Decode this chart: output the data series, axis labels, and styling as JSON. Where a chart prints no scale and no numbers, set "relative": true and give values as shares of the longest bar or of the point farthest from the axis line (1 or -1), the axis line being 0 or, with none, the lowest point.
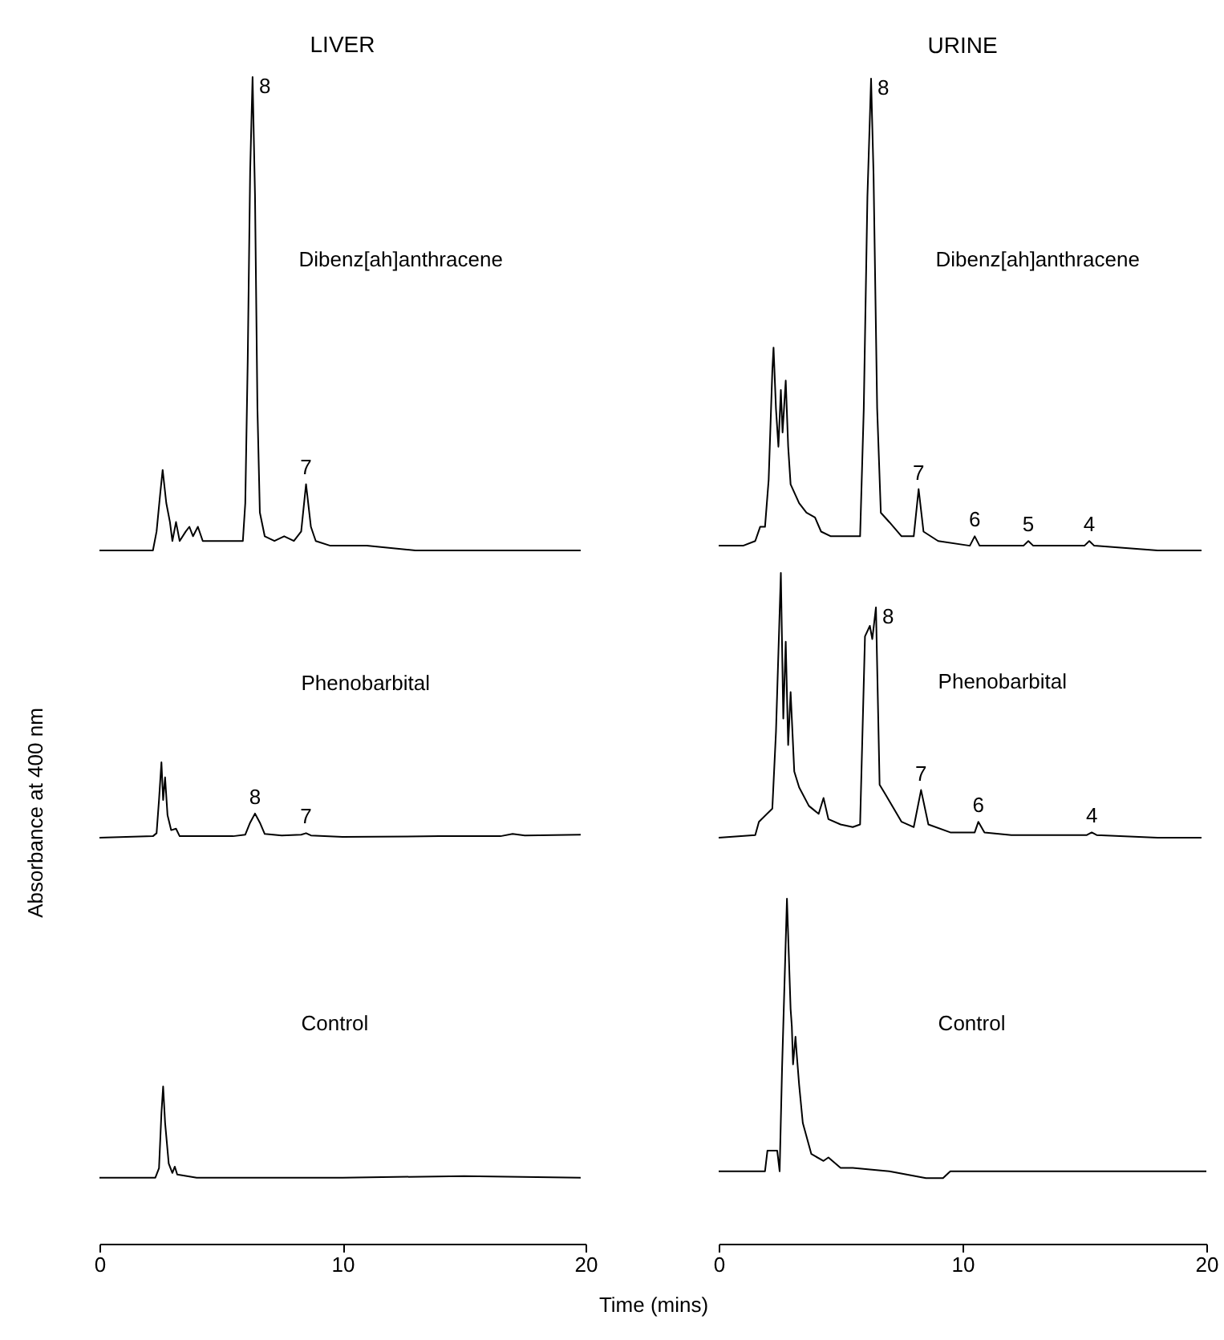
{
  "chart_data": [
    {
      "type": "line",
      "title": "LIVER",
      "relative": true,
      "xlim": [
        0,
        20
      ],
      "xticks": [
        0,
        10,
        20
      ],
      "tick_labels": false,
      "annotations": [
        "Dibenz[ah]anthracene",
        {
          "text": "8",
          "x": 6.3,
          "y": 1
        },
        {
          "text": "7",
          "x": 8.5,
          "y": 0.14
        }
      ],
      "x": [
        0,
        2.2,
        2.35,
        2.5,
        2.6,
        2.75,
        2.9,
        3.0,
        3.15,
        3.3,
        3.55,
        3.7,
        3.85,
        4.05,
        4.25,
        4.6,
        5.9,
        6.0,
        6.1,
        6.2,
        6.3,
        6.4,
        6.5,
        6.6,
        6.8,
        7.2,
        7.6,
        8.0,
        8.3,
        8.5,
        8.7,
        8.9,
        9.5,
        11,
        13,
        16,
        19.8
      ],
      "series": [
        {
          "color": "#000000",
          "values": [
            0,
            0,
            0.04,
            0.12,
            0.17,
            0.1,
            0.06,
            0.02,
            0.06,
            0.02,
            0.04,
            0.05,
            0.03,
            0.05,
            0.02,
            0.02,
            0.02,
            0.1,
            0.4,
            0.8,
            1,
            0.75,
            0.3,
            0.08,
            0.03,
            0.02,
            0.03,
            0.02,
            0.04,
            0.14,
            0.05,
            0.02,
            0.01,
            0.01,
            0,
            0,
            0
          ]
        }
      ]
    },
    {
      "type": "line",
      "title": "URINE",
      "relative": true,
      "xlim": [
        0,
        20
      ],
      "xticks": [
        0,
        10,
        20
      ],
      "tick_labels": false,
      "annotations": [
        "Dibenz[ah]anthracene",
        {
          "text": "8",
          "x": 6.25,
          "y": 1
        },
        {
          "text": "7",
          "x": 8.2,
          "y": 0.13
        },
        {
          "text": "6",
          "x": 10.5,
          "y": 0.03
        },
        {
          "text": "5",
          "x": 12.7,
          "y": 0.02
        },
        {
          "text": "4",
          "x": 15.2,
          "y": 0.02
        }
      ],
      "x": [
        0,
        1.0,
        1.5,
        1.7,
        1.9,
        2.05,
        2.2,
        2.25,
        2.35,
        2.45,
        2.55,
        2.62,
        2.75,
        2.85,
        2.95,
        3.3,
        3.6,
        3.95,
        4.2,
        4.6,
        5.8,
        5.95,
        6.1,
        6.25,
        6.35,
        6.5,
        6.65,
        7.0,
        7.5,
        8.0,
        8.2,
        8.4,
        9,
        10.3,
        10.5,
        10.7,
        12.5,
        12.7,
        12.9,
        15,
        15.2,
        15.4,
        18,
        19.8
      ],
      "series": [
        {
          "color": "#000000",
          "values": [
            0.01,
            0.01,
            0.02,
            0.05,
            0.05,
            0.15,
            0.38,
            0.43,
            0.3,
            0.22,
            0.34,
            0.25,
            0.36,
            0.22,
            0.14,
            0.1,
            0.08,
            0.07,
            0.04,
            0.03,
            0.03,
            0.3,
            0.75,
            1,
            0.8,
            0.3,
            0.08,
            0.06,
            0.03,
            0.03,
            0.13,
            0.04,
            0.02,
            0.01,
            0.03,
            0.01,
            0.01,
            0.02,
            0.01,
            0.01,
            0.02,
            0.01,
            0,
            0
          ]
        }
      ]
    },
    {
      "type": "line",
      "relative": true,
      "xlim": [
        0,
        20
      ],
      "xticks": [
        0,
        10,
        20
      ],
      "tick_labels": false,
      "ylabel": "Absorbance at 400 nm",
      "annotations": [
        "Phenobarbital",
        {
          "text": "8",
          "x": 6.4,
          "y": 0.32
        },
        {
          "text": "7",
          "x": 8.5,
          "y": 0.06
        }
      ],
      "x": [
        0,
        2.2,
        2.35,
        2.45,
        2.55,
        2.62,
        2.7,
        2.8,
        2.95,
        3.15,
        3.3,
        4,
        5.5,
        6.0,
        6.2,
        6.4,
        6.6,
        6.8,
        7.5,
        8.3,
        8.5,
        8.7,
        10,
        14,
        16.5,
        17,
        17.5,
        19.8
      ],
      "series": [
        {
          "color": "#000000",
          "values": [
            0,
            0.02,
            0.06,
            0.5,
            1,
            0.5,
            0.8,
            0.3,
            0.1,
            0.12,
            0.02,
            0.02,
            0.02,
            0.04,
            0.2,
            0.32,
            0.2,
            0.05,
            0.03,
            0.04,
            0.06,
            0.03,
            0.01,
            0.02,
            0.02,
            0.05,
            0.03,
            0.04
          ]
        }
      ]
    },
    {
      "type": "line",
      "relative": true,
      "xlim": [
        0,
        20
      ],
      "xticks": [
        0,
        10,
        20
      ],
      "tick_labels": false,
      "annotations": [
        "Phenobarbital",
        {
          "text": "8",
          "x": 6.45,
          "y": 0.87
        },
        {
          "text": "7",
          "x": 8.3,
          "y": 0.18
        },
        {
          "text": "6",
          "x": 10.65,
          "y": 0.06
        },
        {
          "text": "4",
          "x": 15.3,
          "y": 0.02
        }
      ],
      "x": [
        0,
        1.5,
        1.65,
        2.2,
        2.35,
        2.45,
        2.55,
        2.65,
        2.75,
        2.85,
        2.95,
        3.1,
        3.3,
        3.7,
        4.1,
        4.3,
        4.5,
        5.0,
        5.5,
        5.8,
        6.0,
        6.2,
        6.3,
        6.45,
        6.6,
        6.8,
        7.5,
        8.0,
        8.3,
        8.6,
        9.5,
        10.5,
        10.65,
        10.9,
        12,
        15.1,
        15.3,
        15.5,
        18,
        19.8
      ],
      "series": [
        {
          "color": "#000000",
          "values": [
            0,
            0.01,
            0.06,
            0.11,
            0.4,
            0.7,
            1,
            0.45,
            0.74,
            0.35,
            0.55,
            0.25,
            0.19,
            0.12,
            0.09,
            0.15,
            0.07,
            0.05,
            0.04,
            0.05,
            0.76,
            0.8,
            0.75,
            0.87,
            0.2,
            0.17,
            0.06,
            0.04,
            0.18,
            0.05,
            0.02,
            0.02,
            0.06,
            0.02,
            0.01,
            0.01,
            0.02,
            0.01,
            0,
            0
          ]
        }
      ]
    },
    {
      "type": "line",
      "relative": true,
      "xlim": [
        0,
        20
      ],
      "xticks": [
        0,
        10,
        20
      ],
      "tick_labels": "x",
      "xlabel": "Time (mins)",
      "annotations": [
        "Control"
      ],
      "x": [
        0,
        2.3,
        2.45,
        2.55,
        2.62,
        2.7,
        2.85,
        3.0,
        3.1,
        3.2,
        4,
        10,
        15,
        19.8
      ],
      "series": [
        {
          "color": "#000000",
          "values": [
            0.42,
            0.42,
            0.48,
            0.83,
            1,
            0.77,
            0.51,
            0.45,
            0.49,
            0.44,
            0.42,
            0.42,
            0.43,
            0.42
          ]
        }
      ]
    },
    {
      "type": "line",
      "relative": true,
      "xlim": [
        0,
        20
      ],
      "xticks": [
        0,
        10,
        20
      ],
      "tick_labels": "x",
      "annotations": [
        "Control"
      ],
      "x": [
        0,
        1.9,
        2.0,
        2.4,
        2.5,
        2.6,
        2.8,
        2.95,
        3.0,
        3.05,
        3.15,
        3.2,
        3.3,
        3.45,
        3.8,
        4.3,
        4.5,
        5,
        5.5,
        7,
        8.5,
        9.2,
        9.5,
        10,
        20
      ],
      "series": [
        {
          "color": "#000000",
          "values": [
            0.21,
            0.21,
            0.27,
            0.27,
            0.21,
            0.51,
            1,
            0.68,
            0.63,
            0.52,
            0.6,
            0.55,
            0.46,
            0.35,
            0.26,
            0.24,
            0.25,
            0.22,
            0.22,
            0.21,
            0.19,
            0.19,
            0.21,
            0.21,
            0.21
          ]
        }
      ]
    }
  ]
}
